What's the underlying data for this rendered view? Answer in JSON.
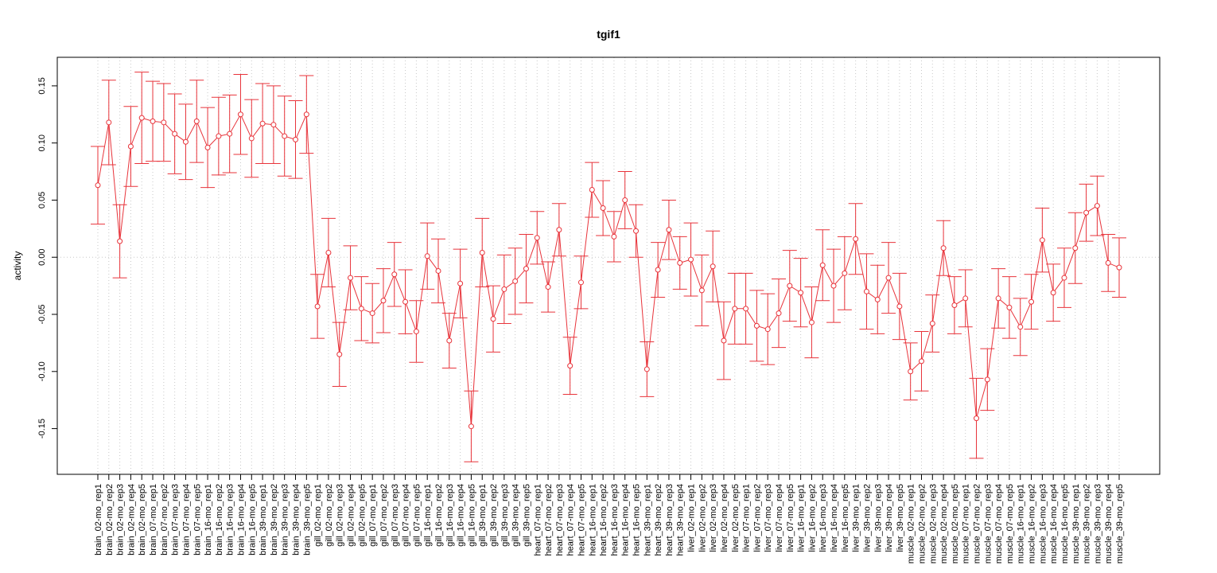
{
  "chart_data": {
    "type": "line",
    "title": "tgif1",
    "xlabel": "",
    "ylabel": "activity",
    "ylim": [
      -0.19,
      0.175
    ],
    "yticks": [
      -0.15,
      -0.1,
      -0.05,
      0.0,
      0.05,
      0.1,
      0.15
    ],
    "ytick_labels": [
      "-0.15",
      "-0.10",
      "-0.05",
      "0.00",
      "0.05",
      "0.10",
      "0.15"
    ],
    "grid": true,
    "reference_line_y": 0,
    "colors": {
      "series": "#e8333a",
      "grid": "#c8c8c8",
      "axis": "#000000"
    },
    "categories": [
      "brain_02-mo_rep1",
      "brain_02-mo_rep2",
      "brain_02-mo_rep3",
      "brain_02-mo_rep4",
      "brain_02-mo_rep5",
      "brain_07-mo_rep1",
      "brain_07-mo_rep2",
      "brain_07-mo_rep3",
      "brain_07-mo_rep4",
      "brain_07-mo_rep5",
      "brain_16-mo_rep1",
      "brain_16-mo_rep2",
      "brain_16-mo_rep3",
      "brain_16-mo_rep4",
      "brain_16-mo_rep5",
      "brain_39-mo_rep1",
      "brain_39-mo_rep2",
      "brain_39-mo_rep3",
      "brain_39-mo_rep4",
      "brain_39-mo_rep5",
      "gill_02-mo_rep1",
      "gill_02-mo_rep2",
      "gill_02-mo_rep3",
      "gill_02-mo_rep4",
      "gill_02-mo_rep5",
      "gill_07-mo_rep1",
      "gill_07-mo_rep2",
      "gill_07-mo_rep3",
      "gill_07-mo_rep4",
      "gill_07-mo_rep5",
      "gill_16-mo_rep1",
      "gill_16-mo_rep2",
      "gill_16-mo_rep3",
      "gill_16-mo_rep4",
      "gill_16-mo_rep5",
      "gill_39-mo_rep1",
      "gill_39-mo_rep2",
      "gill_39-mo_rep3",
      "gill_39-mo_rep4",
      "gill_39-mo_rep5",
      "heart_07-mo_rep1",
      "heart_07-mo_rep2",
      "heart_07-mo_rep3",
      "heart_07-mo_rep4",
      "heart_07-mo_rep5",
      "heart_16-mo_rep1",
      "heart_16-mo_rep2",
      "heart_16-mo_rep3",
      "heart_16-mo_rep4",
      "heart_16-mo_rep5",
      "heart_39-mo_rep1",
      "heart_39-mo_rep2",
      "heart_39-mo_rep3",
      "heart_39-mo_rep4",
      "liver_02-mo_rep1",
      "liver_02-mo_rep2",
      "liver_02-mo_rep3",
      "liver_02-mo_rep4",
      "liver_02-mo_rep5",
      "liver_07-mo_rep1",
      "liver_07-mo_rep2",
      "liver_07-mo_rep3",
      "liver_07-mo_rep4",
      "liver_07-mo_rep5",
      "liver_16-mo_rep1",
      "liver_16-mo_rep2",
      "liver_16-mo_rep3",
      "liver_16-mo_rep4",
      "liver_16-mo_rep5",
      "liver_39-mo_rep1",
      "liver_39-mo_rep2",
      "liver_39-mo_rep3",
      "liver_39-mo_rep4",
      "liver_39-mo_rep5",
      "muscle_02-mo_rep1",
      "muscle_02-mo_rep2",
      "muscle_02-mo_rep3",
      "muscle_02-mo_rep4",
      "muscle_02-mo_rep5",
      "muscle_07-mo_rep1",
      "muscle_07-mo_rep2",
      "muscle_07-mo_rep3",
      "muscle_07-mo_rep4",
      "muscle_07-mo_rep5",
      "muscle_16-mo_rep1",
      "muscle_16-mo_rep2",
      "muscle_16-mo_rep3",
      "muscle_16-mo_rep4",
      "muscle_16-mo_rep5",
      "muscle_39-mo_rep1",
      "muscle_39-mo_rep2",
      "muscle_39-mo_rep3",
      "muscle_39-mo_rep4",
      "muscle_39-mo_rep5"
    ],
    "series": [
      {
        "values": [
          0.063,
          0.118,
          0.014,
          0.097,
          0.122,
          0.119,
          0.118,
          0.108,
          0.101,
          0.119,
          0.096,
          0.106,
          0.108,
          0.125,
          0.104,
          0.117,
          0.116,
          0.106,
          0.103,
          0.125,
          -0.043,
          0.004,
          -0.085,
          -0.018,
          -0.045,
          -0.049,
          -0.038,
          -0.015,
          -0.039,
          -0.065,
          0.001,
          -0.012,
          -0.073,
          -0.023,
          -0.148,
          0.004,
          -0.054,
          -0.028,
          -0.021,
          -0.01,
          0.017,
          -0.026,
          0.024,
          -0.095,
          -0.022,
          0.059,
          0.043,
          0.018,
          0.05,
          0.023,
          -0.098,
          -0.011,
          0.024,
          -0.005,
          -0.002,
          -0.029,
          -0.008,
          -0.073,
          -0.045,
          -0.045,
          -0.06,
          -0.063,
          -0.049,
          -0.025,
          -0.031,
          -0.057,
          -0.007,
          -0.025,
          -0.014,
          0.016,
          -0.03,
          -0.037,
          -0.018,
          -0.043,
          -0.1,
          -0.091,
          -0.058,
          0.008,
          -0.042,
          -0.036,
          -0.141,
          -0.107,
          -0.036,
          -0.044,
          -0.061,
          -0.039,
          0.015,
          -0.031,
          -0.018,
          0.008,
          0.039,
          0.045,
          -0.005,
          -0.009
        ],
        "error": [
          0.034,
          0.037,
          0.032,
          0.035,
          0.04,
          0.035,
          0.034,
          0.035,
          0.033,
          0.036,
          0.035,
          0.034,
          0.034,
          0.035,
          0.034,
          0.035,
          0.034,
          0.035,
          0.034,
          0.034,
          0.028,
          0.03,
          0.028,
          0.028,
          0.028,
          0.026,
          0.028,
          0.028,
          0.028,
          0.027,
          0.029,
          0.028,
          0.024,
          0.03,
          0.031,
          0.03,
          0.029,
          0.03,
          0.029,
          0.03,
          0.023,
          0.022,
          0.023,
          0.025,
          0.023,
          0.024,
          0.024,
          0.022,
          0.025,
          0.023,
          0.024,
          0.024,
          0.026,
          0.023,
          0.032,
          0.031,
          0.031,
          0.034,
          0.031,
          0.031,
          0.031,
          0.031,
          0.03,
          0.031,
          0.03,
          0.031,
          0.031,
          0.032,
          0.032,
          0.031,
          0.033,
          0.03,
          0.031,
          0.029,
          0.025,
          0.026,
          0.025,
          0.024,
          0.025,
          0.025,
          0.035,
          0.027,
          0.026,
          0.027,
          0.025,
          0.024,
          0.028,
          0.025,
          0.026,
          0.031,
          0.025,
          0.026,
          0.025,
          0.026
        ]
      }
    ]
  }
}
